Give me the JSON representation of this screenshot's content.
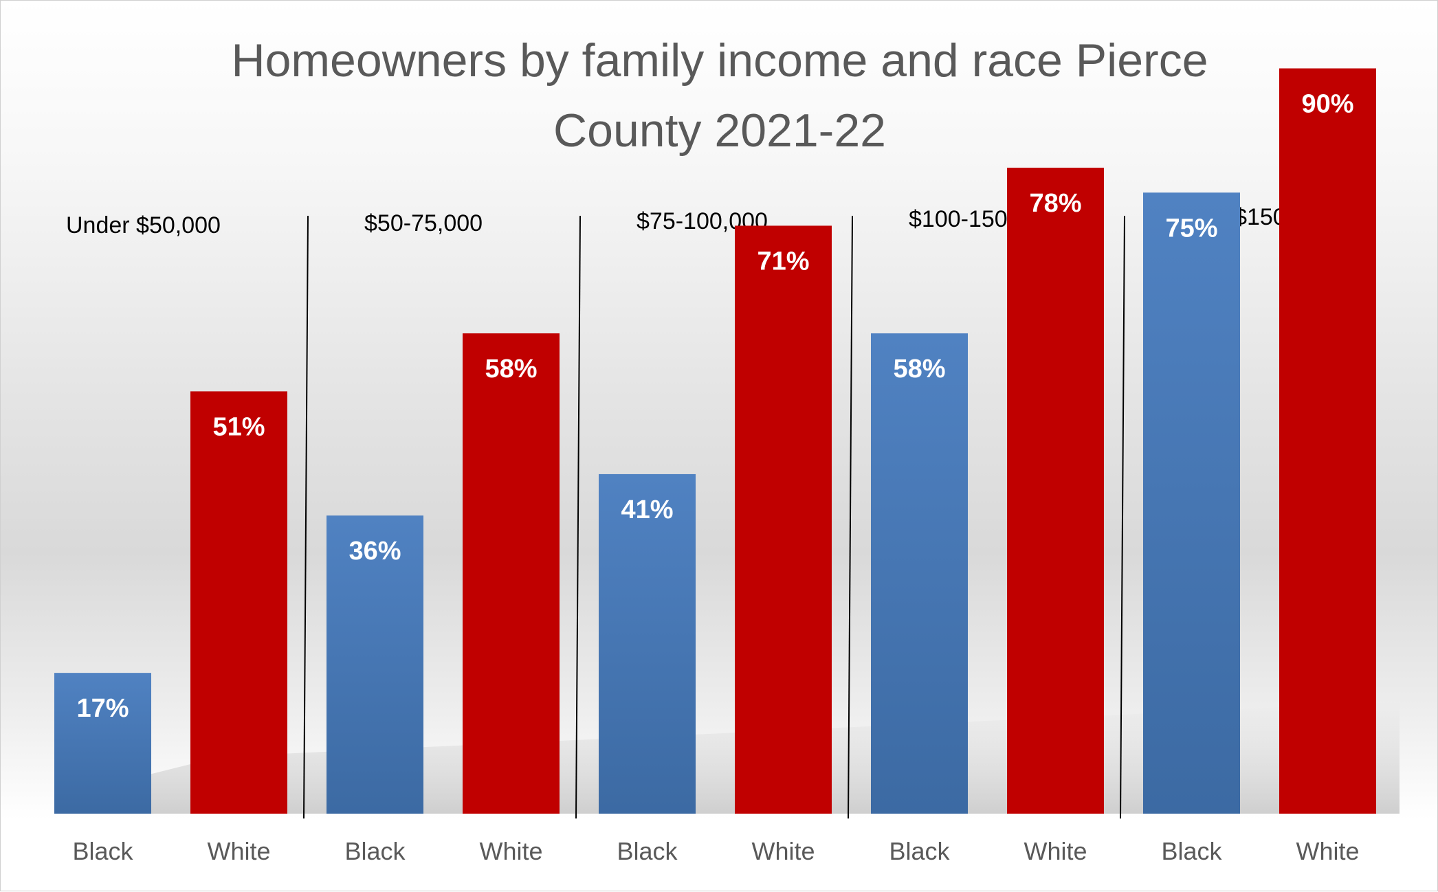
{
  "chart_data": {
    "type": "bar",
    "title_line1": "Homeowners by family income and race  Pierce",
    "title_line2": "County 2021-22",
    "groups": [
      {
        "label": "Under $50,000",
        "bars": [
          {
            "category": "Black",
            "value": 17,
            "label": "17%"
          },
          {
            "category": "White",
            "value": 51,
            "label": "51%"
          }
        ]
      },
      {
        "label": "$50-75,000",
        "bars": [
          {
            "category": "Black",
            "value": 36,
            "label": "36%"
          },
          {
            "category": "White",
            "value": 58,
            "label": "58%"
          }
        ]
      },
      {
        "label": "$75-100,000",
        "bars": [
          {
            "category": "Black",
            "value": 41,
            "label": "41%"
          },
          {
            "category": "White",
            "value": 71,
            "label": "71%"
          }
        ]
      },
      {
        "label": "$100-150,000",
        "bars": [
          {
            "category": "Black",
            "value": 58,
            "label": "58%"
          },
          {
            "category": "White",
            "value": 78,
            "label": "78%"
          }
        ]
      },
      {
        "label": "above $150,000",
        "bars": [
          {
            "category": "Black",
            "value": 75,
            "label": "75%"
          },
          {
            "category": "White",
            "value": 90,
            "label": "90%"
          }
        ]
      }
    ],
    "ylim": [
      0,
      100
    ],
    "grid": false,
    "legend": "none",
    "colors": {
      "Black": "#4f81bd",
      "White": "#c00000"
    }
  }
}
